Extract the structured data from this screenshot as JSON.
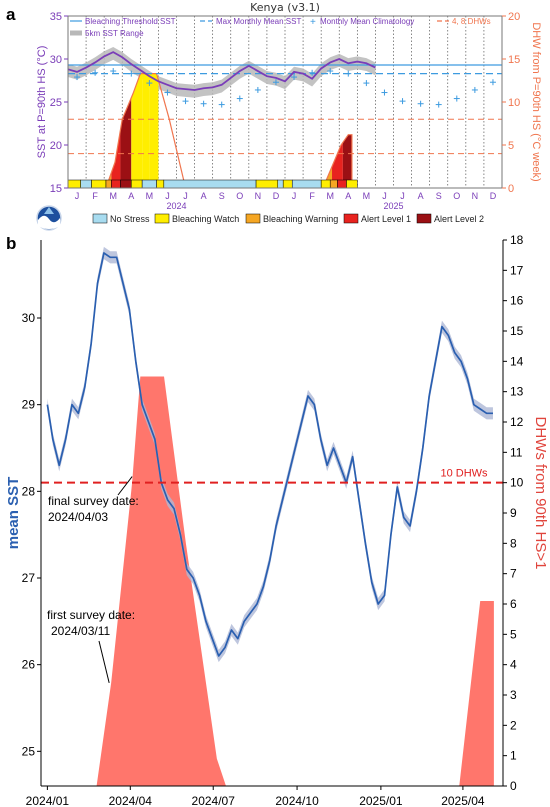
{
  "colors": {
    "climatology_purple": "#7a3db8",
    "dhw_orange": "#f0754e",
    "threshold_line": "#3d9be0",
    "mmm_line": "#3d9be0",
    "sst_range": "#b8b8b8",
    "no_stress": "#a8dcf0",
    "watch": "#ffee00",
    "warning": "#f5a623",
    "alert1": "#e8231f",
    "alert2": "#9b1014",
    "sst_blue": "#2a5fb0",
    "dhw_fill": "#ff6f64",
    "threshold_red": "#e02020"
  },
  "panel_a": {
    "panel_label": "a",
    "title": "Kenya (v3.1)",
    "ylabel_left": "SST at P=90th HS (°C)",
    "ylabel_right": "DHW from P=90th HS (°C week)",
    "legend": {
      "threshold": "Bleaching Threshold SST",
      "mmm": "Max Monthly Mean SST",
      "clim": "Monthly Mean Climatology",
      "dhw": "4, 8 DHWs",
      "range": "5km SST Range"
    },
    "status_legend": [
      "No Stress",
      "Bleaching Watch",
      "Bleaching Warning",
      "Alert Level 1",
      "Alert Level 2"
    ],
    "year_labels": [
      "2024",
      "2025"
    ],
    "logo_text": "NOAA"
  },
  "chart_data": [
    {
      "type": "line",
      "title": "Kenya (v3.1)",
      "xlabel": "",
      "ylabel": "SST at P=90th HS (°C)",
      "y2label": "DHW from P=90th HS (°C week)",
      "x_months": [
        "J",
        "F",
        "M",
        "A",
        "M",
        "J",
        "J",
        "A",
        "S",
        "O",
        "N",
        "D",
        "J",
        "F",
        "M",
        "A",
        "M",
        "J",
        "J",
        "A",
        "S",
        "O",
        "N",
        "D"
      ],
      "ylim": [
        15,
        35
      ],
      "y_ticks": [
        15,
        20,
        25,
        30,
        35
      ],
      "y2lim": [
        0,
        20
      ],
      "y2_ticks": [
        0,
        5,
        10,
        15,
        20
      ],
      "bleaching_threshold_sst": 29.3,
      "max_monthly_mean_sst": 28.3,
      "dhw_levels": [
        4,
        8
      ],
      "sst_series": {
        "name": "SST",
        "x": [
          0,
          0.5,
          1,
          1.5,
          2,
          2.5,
          3,
          3.5,
          4,
          4.5,
          5,
          5.5,
          6,
          6.5,
          7,
          7.5,
          8,
          8.5,
          9,
          9.5,
          10,
          10.5,
          11,
          11.5,
          12,
          12.5,
          13,
          13.5,
          14,
          14.5,
          15,
          15.5,
          16,
          16.5,
          17
        ],
        "values": [
          28.8,
          28.5,
          29.0,
          29.6,
          30.3,
          30.8,
          30.2,
          29.4,
          28.7,
          28.0,
          27.4,
          27.0,
          26.6,
          26.5,
          26.4,
          26.6,
          26.7,
          27.0,
          27.8,
          28.6,
          29.2,
          28.6,
          28.0,
          27.8,
          27.4,
          28.5,
          28.3,
          27.7,
          28.9,
          29.6,
          30.0,
          29.5,
          29.7,
          29.5,
          29.0
        ]
      },
      "climatology": {
        "name": "Monthly Mean Climatology",
        "x": [
          0,
          1,
          2,
          3,
          4,
          5,
          6,
          7,
          8,
          9,
          10,
          11,
          12,
          13,
          14,
          15,
          16,
          17,
          18,
          19,
          20,
          21,
          22,
          23
        ],
        "values": [
          27.9,
          28.4,
          28.6,
          28.3,
          27.2,
          26.1,
          25.1,
          24.8,
          24.7,
          25.4,
          26.4,
          27.3,
          27.9,
          28.4,
          28.6,
          28.3,
          27.2,
          26.1,
          25.1,
          24.8,
          24.7,
          25.4,
          26.4,
          27.3
        ]
      },
      "dhw_area": [
        {
          "x": 2.1,
          "y": 0
        },
        {
          "x": 2.6,
          "y": 3
        },
        {
          "x": 3.0,
          "y": 8
        },
        {
          "x": 3.6,
          "y": 11
        },
        {
          "x": 4.0,
          "y": 13.3
        },
        {
          "x": 4.9,
          "y": 13.3
        },
        {
          "x": 5.6,
          "y": 8
        },
        {
          "x": 6.5,
          "y": 0
        },
        {
          "x": 14.1,
          "y": 0
        },
        {
          "x": 14.6,
          "y": 2.5
        },
        {
          "x": 15.1,
          "y": 5
        },
        {
          "x": 15.5,
          "y": 6.2
        },
        {
          "x": 15.7,
          "y": 6.2
        },
        {
          "x": 15.7,
          "y": 0
        }
      ],
      "status_bar": [
        {
          "from": 0,
          "to": 0.7,
          "status": "watch"
        },
        {
          "from": 0.7,
          "to": 1.3,
          "status": "no_stress"
        },
        {
          "from": 1.3,
          "to": 2.1,
          "status": "watch"
        },
        {
          "from": 2.1,
          "to": 2.4,
          "status": "warning"
        },
        {
          "from": 2.4,
          "to": 2.9,
          "status": "alert1"
        },
        {
          "from": 2.9,
          "to": 3.5,
          "status": "alert2"
        },
        {
          "from": 3.5,
          "to": 4.1,
          "status": "watch"
        },
        {
          "from": 4.1,
          "to": 4.9,
          "status": "no_stress"
        },
        {
          "from": 4.9,
          "to": 5.3,
          "status": "watch"
        },
        {
          "from": 5.3,
          "to": 10.4,
          "status": "no_stress"
        },
        {
          "from": 10.4,
          "to": 11.6,
          "status": "watch"
        },
        {
          "from": 11.6,
          "to": 11.9,
          "status": "no_stress"
        },
        {
          "from": 11.9,
          "to": 12.4,
          "status": "watch"
        },
        {
          "from": 12.4,
          "to": 14.0,
          "status": "no_stress"
        },
        {
          "from": 14.0,
          "to": 14.5,
          "status": "watch"
        },
        {
          "from": 14.5,
          "to": 14.9,
          "status": "warning"
        },
        {
          "from": 14.9,
          "to": 15.4,
          "status": "alert1"
        },
        {
          "from": 15.4,
          "to": 16.0,
          "status": "watch"
        },
        {
          "from": 16.0,
          "to": 24,
          "status": "none"
        }
      ]
    },
    {
      "type": "line",
      "title": "",
      "ylabel": "mean SST",
      "y2label": "DHWs from 90th HS>1",
      "x_tick_labels": [
        "2024/01",
        "2024/04",
        "2024/07",
        "2024/10",
        "2025/01",
        "2025/04"
      ],
      "ylim": [
        24.6,
        30.9
      ],
      "y_ticks": [
        25,
        26,
        27,
        28,
        29,
        30
      ],
      "y2lim": [
        0,
        18
      ],
      "y2_ticks": [
        0,
        1,
        2,
        3,
        4,
        5,
        6,
        7,
        8,
        9,
        10,
        11,
        12,
        13,
        14,
        15,
        16,
        17,
        18
      ],
      "threshold_label": "10 DHWs",
      "threshold_value": 10,
      "annotations": [
        {
          "text_lines": [
            "final survey date:",
            "2024/04/03"
          ]
        },
        {
          "text_lines": [
            "first survey date:",
            "2024/03/11"
          ]
        }
      ],
      "sst_series": {
        "name": "mean SST",
        "x": [
          "2024-01-01",
          "2024-01-07",
          "2024-01-14",
          "2024-01-21",
          "2024-01-28",
          "2024-02-04",
          "2024-02-11",
          "2024-02-18",
          "2024-02-25",
          "2024-03-03",
          "2024-03-10",
          "2024-03-17",
          "2024-03-24",
          "2024-03-31",
          "2024-04-07",
          "2024-04-14",
          "2024-04-21",
          "2024-04-28",
          "2024-05-05",
          "2024-05-12",
          "2024-05-19",
          "2024-05-26",
          "2024-06-02",
          "2024-06-09",
          "2024-06-16",
          "2024-06-23",
          "2024-06-30",
          "2024-07-07",
          "2024-07-14",
          "2024-07-21",
          "2024-07-28",
          "2024-08-04",
          "2024-08-11",
          "2024-08-18",
          "2024-08-25",
          "2024-09-01",
          "2024-09-08",
          "2024-09-15",
          "2024-09-22",
          "2024-09-29",
          "2024-10-06",
          "2024-10-13",
          "2024-10-20",
          "2024-10-27",
          "2024-11-03",
          "2024-11-10",
          "2024-11-17",
          "2024-11-24",
          "2024-12-01",
          "2024-12-08",
          "2024-12-15",
          "2024-12-22",
          "2024-12-29",
          "2025-01-05",
          "2025-01-12",
          "2025-01-19",
          "2025-01-26",
          "2025-02-02",
          "2025-02-09",
          "2025-02-16",
          "2025-02-23",
          "2025-03-02",
          "2025-03-09",
          "2025-03-16",
          "2025-03-23",
          "2025-03-30",
          "2025-04-06",
          "2025-04-13",
          "2025-04-20",
          "2025-04-27",
          "2025-05-04"
        ],
        "values": [
          29.0,
          28.6,
          28.3,
          28.6,
          29.0,
          28.9,
          29.2,
          29.7,
          30.4,
          30.75,
          30.7,
          30.7,
          30.4,
          30.1,
          29.5,
          29.0,
          28.8,
          28.6,
          28.1,
          27.9,
          27.8,
          27.5,
          27.1,
          27.0,
          26.8,
          26.5,
          26.3,
          26.1,
          26.2,
          26.4,
          26.3,
          26.5,
          26.6,
          26.7,
          26.9,
          27.2,
          27.6,
          27.9,
          28.2,
          28.5,
          28.8,
          29.1,
          29.0,
          28.6,
          28.3,
          28.5,
          28.3,
          28.1,
          28.4,
          27.9,
          27.4,
          26.95,
          26.7,
          26.8,
          27.5,
          28.05,
          27.7,
          27.6,
          28.0,
          28.5,
          29.1,
          29.5,
          29.9,
          29.8,
          29.6,
          29.5,
          29.3,
          29.0,
          28.95,
          28.9,
          28.9
        ]
      },
      "dhw_series": {
        "name": "DHWs from 90th HS>1",
        "x": [
          "2024-02-24",
          "2024-03-11",
          "2024-04-03",
          "2024-04-12",
          "2024-05-08",
          "2024-06-01",
          "2024-07-05",
          "2024-07-15",
          "2025-03-28",
          "2025-04-20",
          "2025-05-05",
          "2025-05-05"
        ],
        "values": [
          0,
          3.4,
          10.0,
          13.5,
          13.5,
          8.0,
          0.9,
          0,
          0,
          6.1,
          6.1,
          0
        ]
      }
    }
  ]
}
